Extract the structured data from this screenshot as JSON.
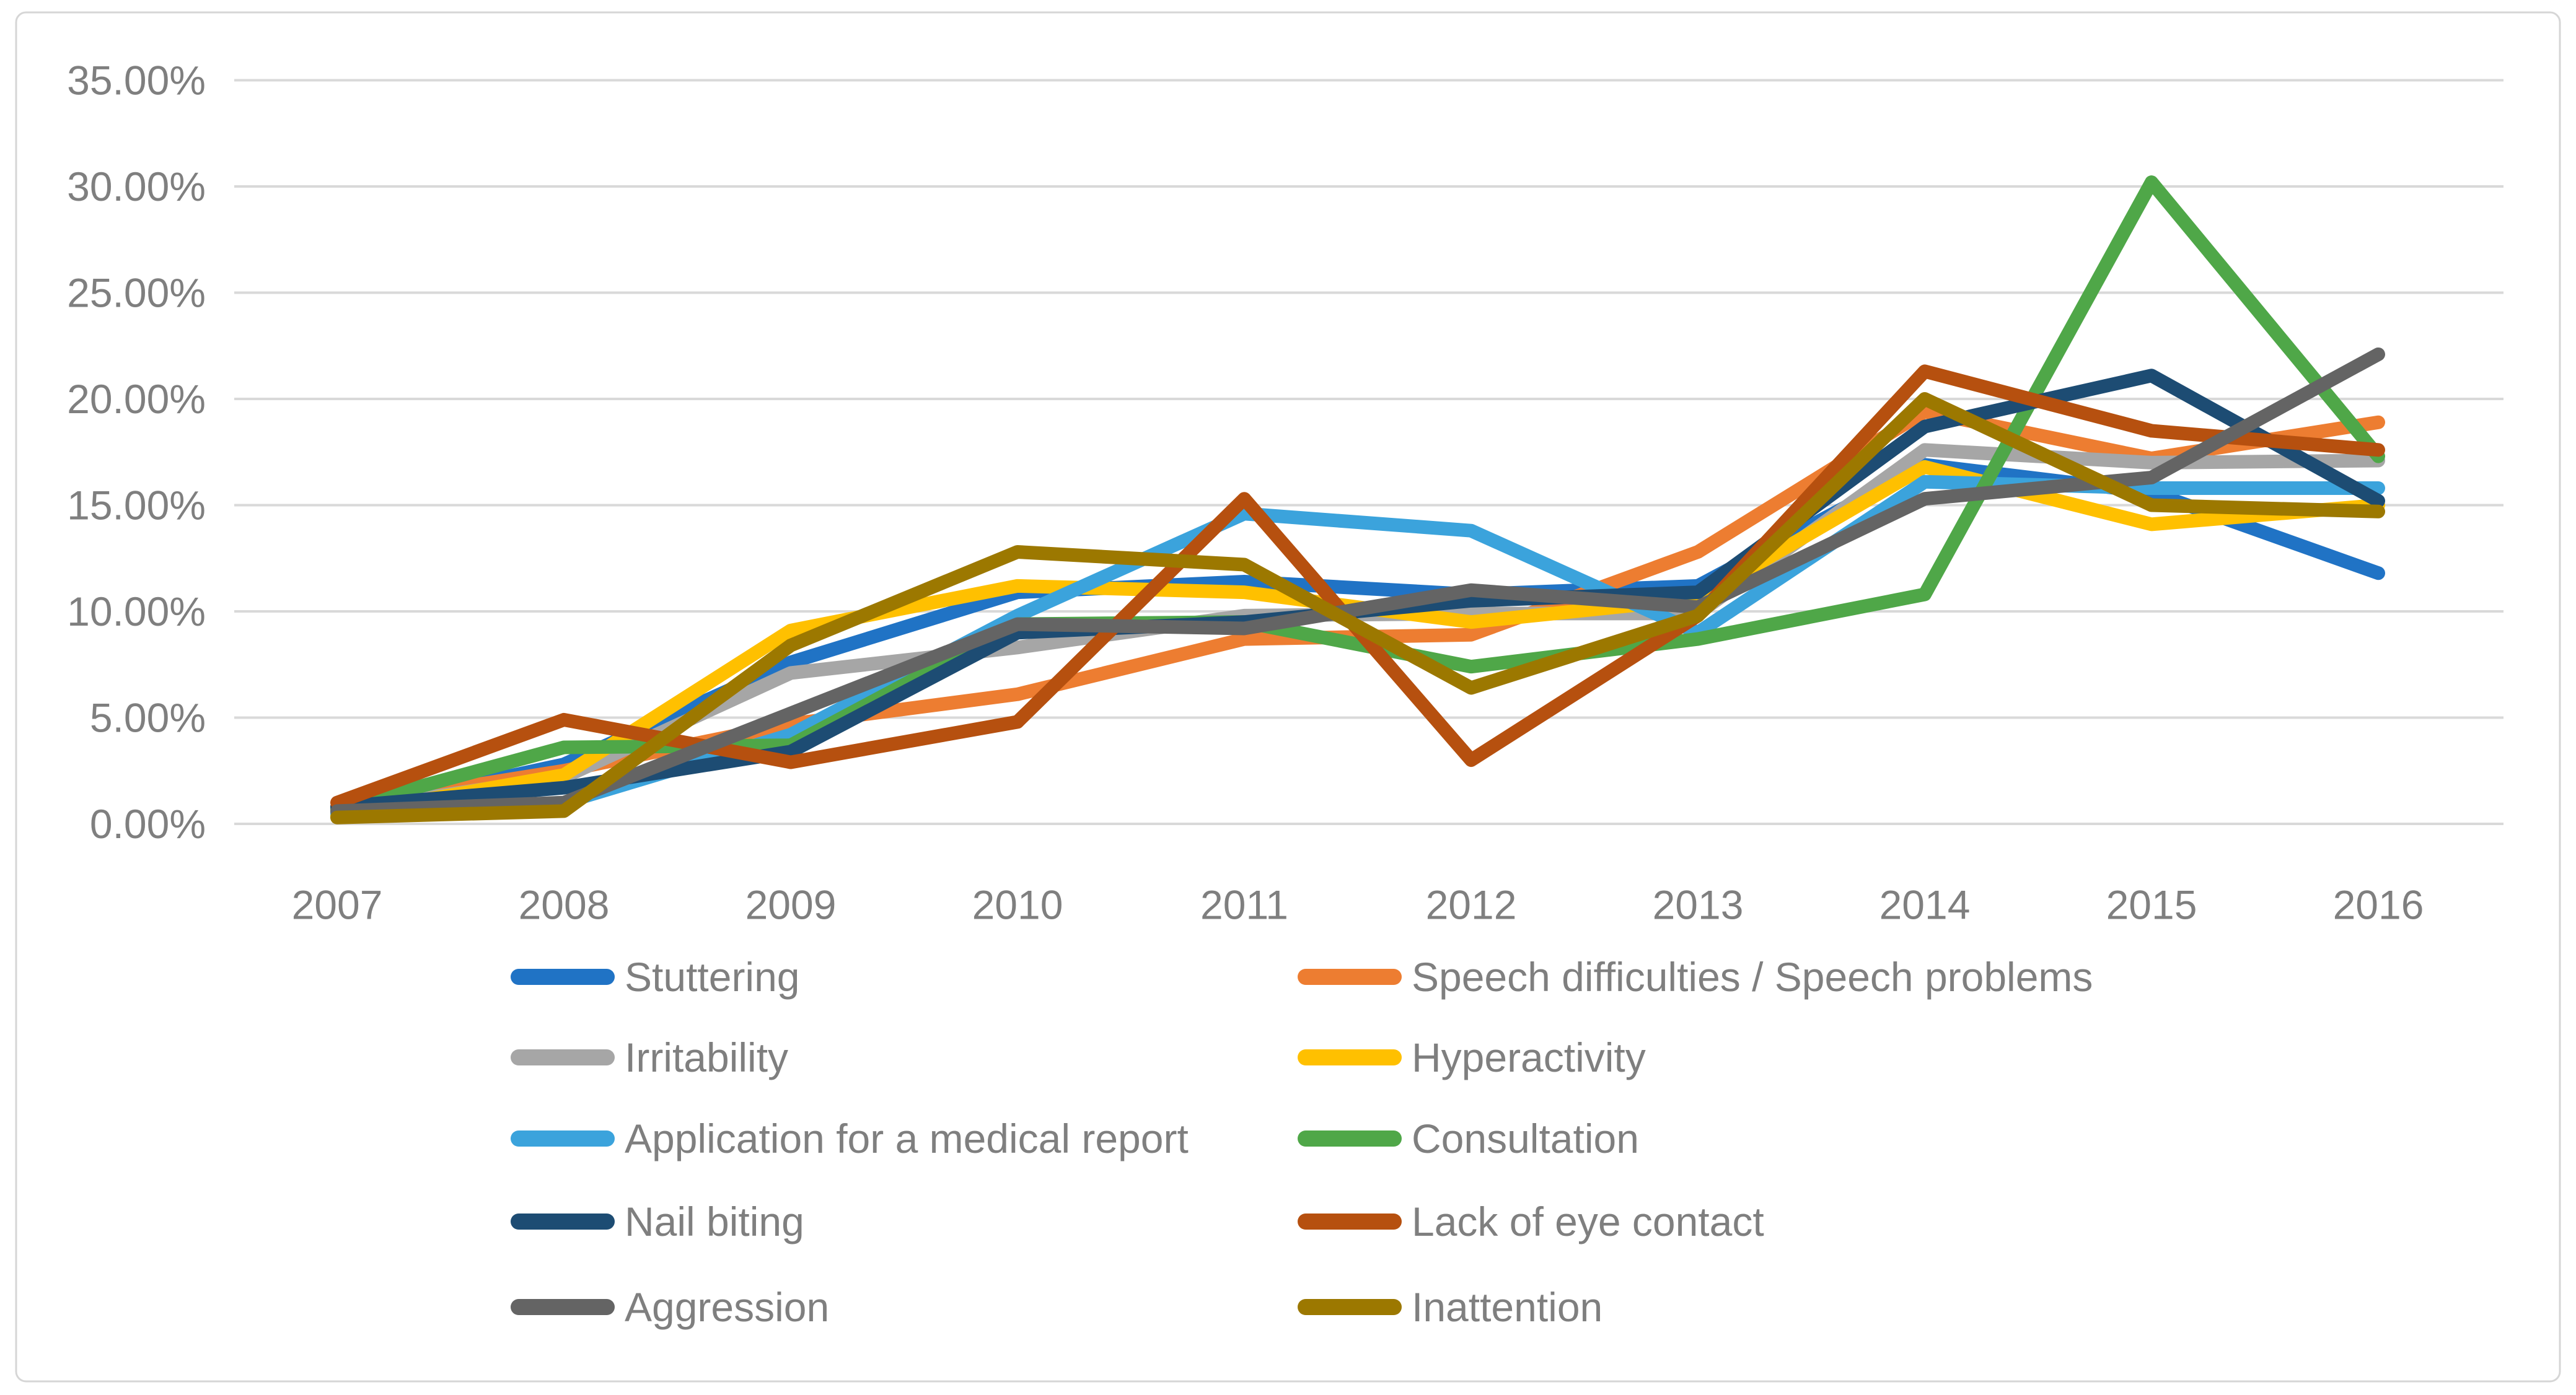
{
  "chart_data": {
    "type": "line",
    "title": "",
    "xlabel": "",
    "ylabel": "",
    "ylim": [
      0,
      35
    ],
    "grid": true,
    "legend_position": "bottom-two-columns",
    "y_ticks": [
      "0.00%",
      "5.00%",
      "10.00%",
      "15.00%",
      "20.00%",
      "25.00%",
      "30.00%",
      "35.00%"
    ],
    "categories": [
      "2007",
      "2008",
      "2009",
      "2010",
      "2011",
      "2012",
      "2013",
      "2014",
      "2015",
      "2016"
    ],
    "series": [
      {
        "name": "Stuttering",
        "color": "#2073C5",
        "values": [
          0.5,
          2.8,
          7.6,
          10.9,
          11.4,
          10.8,
          11.2,
          16.9,
          15.6,
          11.8
        ]
      },
      {
        "name": "Speech difficulties / Speech problems",
        "color": "#ED7D31",
        "values": [
          0.8,
          2.5,
          4.7,
          6.1,
          8.7,
          8.9,
          12.8,
          19.4,
          17.2,
          18.9
        ]
      },
      {
        "name": "Irritability",
        "color": "#A6A6A6",
        "values": [
          0.6,
          2.2,
          7.1,
          8.3,
          9.8,
          9.9,
          9.9,
          17.6,
          17.0,
          17.1
        ]
      },
      {
        "name": "Hyperactivity",
        "color": "#FFC000",
        "values": [
          0.4,
          2.3,
          9.1,
          11.2,
          10.9,
          9.5,
          10.6,
          16.8,
          14.1,
          15.0
        ]
      },
      {
        "name": "Application for a medical report",
        "color": "#3BA3DC",
        "values": [
          0.5,
          1.0,
          4.2,
          9.8,
          14.6,
          13.8,
          9.0,
          16.1,
          15.8,
          15.8
        ]
      },
      {
        "name": "Consultation",
        "color": "#4FA748",
        "values": [
          0.7,
          3.6,
          3.7,
          9.4,
          9.5,
          7.4,
          8.7,
          10.8,
          30.2,
          17.3
        ]
      },
      {
        "name": "Nail biting",
        "color": "#1D4C73",
        "values": [
          0.8,
          1.7,
          3.4,
          9.0,
          9.5,
          10.5,
          10.9,
          18.7,
          21.1,
          15.2
        ]
      },
      {
        "name": "Lack of eye contact",
        "color": "#B6500F",
        "values": [
          1.0,
          4.9,
          2.9,
          4.8,
          15.3,
          3.0,
          9.8,
          21.3,
          18.5,
          17.6
        ]
      },
      {
        "name": "Aggression",
        "color": "#646464",
        "values": [
          0.6,
          1.0,
          5.2,
          9.4,
          9.2,
          11.0,
          10.2,
          15.3,
          16.3,
          22.1
        ]
      },
      {
        "name": "Inattention",
        "color": "#9C7800",
        "values": [
          0.3,
          0.6,
          8.4,
          12.8,
          12.2,
          6.4,
          9.8,
          20.0,
          15.0,
          14.7
        ]
      }
    ]
  }
}
